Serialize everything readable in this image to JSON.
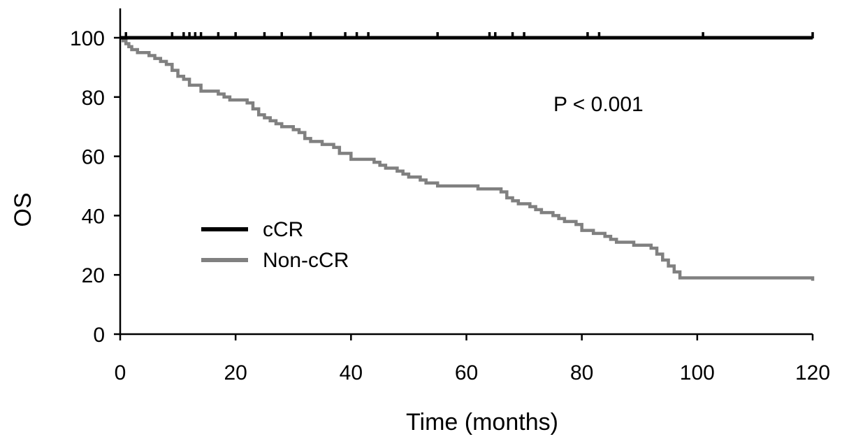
{
  "chart_data": {
    "type": "line",
    "step": true,
    "xlabel": "Time (months)",
    "ylabel": "OS",
    "xlim": [
      0,
      120
    ],
    "ylim": [
      0,
      100
    ],
    "xticks": [
      0,
      20,
      40,
      60,
      80,
      100,
      120
    ],
    "yticks": [
      0,
      20,
      40,
      60,
      80,
      100
    ],
    "grid": false,
    "legend_position": "center-left",
    "annotation": "P < 0.001",
    "series": [
      {
        "name": "cCR",
        "color": "#000000",
        "x": [
          0,
          120
        ],
        "y": [
          100,
          100
        ],
        "censor_x": [
          1,
          9,
          11,
          12,
          13,
          14,
          17,
          20,
          25,
          28,
          33,
          39,
          41,
          43,
          55,
          64,
          65,
          68,
          70,
          81,
          83,
          101,
          120
        ]
      },
      {
        "name": "Non-cCR",
        "color": "#808080",
        "x": [
          0,
          0.5,
          1,
          1.5,
          2,
          3,
          5,
          6,
          7,
          8,
          9,
          10,
          11,
          12,
          14,
          15,
          17,
          18,
          19,
          20,
          22,
          23,
          24,
          25,
          26,
          27,
          28,
          30,
          31,
          32,
          33,
          35,
          37,
          38,
          40,
          42,
          44,
          45,
          46,
          48,
          49,
          50,
          52,
          53,
          55,
          58,
          60,
          62,
          64,
          66,
          67,
          68,
          69,
          71,
          72,
          73,
          75,
          76,
          77,
          79,
          80,
          82,
          84,
          85,
          86,
          89,
          92,
          93,
          94,
          95,
          96,
          97,
          120
        ],
        "y": [
          100,
          99,
          98,
          97,
          96,
          95,
          94,
          93,
          92,
          91,
          89,
          87,
          86,
          84,
          82,
          82,
          81,
          80,
          79,
          79,
          78,
          76,
          74,
          73,
          72,
          71,
          70,
          69,
          68,
          66,
          65,
          64,
          63,
          61,
          59,
          59,
          58,
          57,
          56,
          55,
          54,
          53,
          52,
          51,
          50,
          50,
          50,
          49,
          49,
          48,
          46,
          45,
          44,
          43,
          42,
          41,
          40,
          39,
          38,
          37,
          35,
          34,
          33,
          32,
          31,
          30,
          29,
          27,
          25,
          23,
          21,
          19,
          18
        ]
      }
    ]
  }
}
